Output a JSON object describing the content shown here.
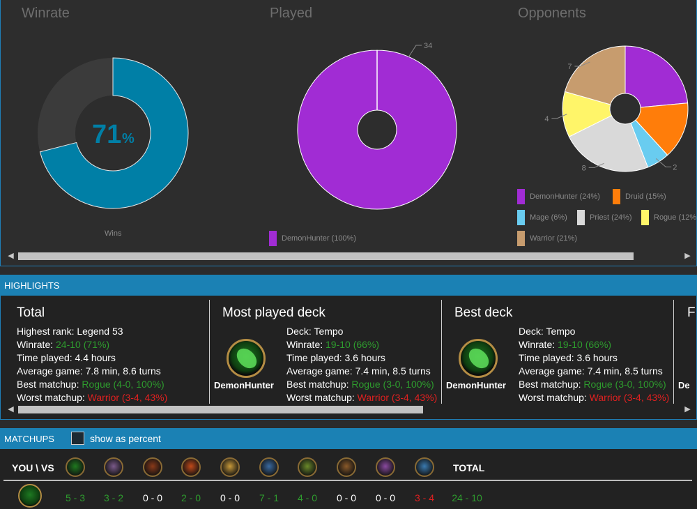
{
  "charts": {
    "winrate": {
      "title": "Winrate",
      "percent_value": "71",
      "percent_sign": "%",
      "legend": "Wins",
      "fraction": 0.71,
      "colors": {
        "fill": "#007fa6",
        "track": "#3b3b3b"
      }
    },
    "played": {
      "title": "Played",
      "callout": "34",
      "legend": "DemonHunter (100%)",
      "color": "#a12cd4"
    },
    "opponents": {
      "title": "Opponents",
      "callouts": [
        "7",
        "4",
        "8",
        "2"
      ],
      "legend": [
        {
          "label": "DemonHunter (24%)",
          "color": "#a12cd4"
        },
        {
          "label": "Druid (15%)",
          "color": "#ff7d0a"
        },
        {
          "label": "Mage (6%)",
          "color": "#69ccf0"
        },
        {
          "label": "Priest (24%)",
          "color": "#d9d9d9"
        },
        {
          "label": "Rogue (12%",
          "color": "#fff569"
        },
        {
          "label": "Warrior (21%)",
          "color": "#c79c6e"
        }
      ]
    }
  },
  "chart_data": {
    "type": "pie",
    "title": "Opponents",
    "categories": [
      "DemonHunter",
      "Druid",
      "Mage",
      "Priest",
      "Rogue",
      "Warrior"
    ],
    "values": [
      8,
      5,
      2,
      8,
      4,
      7
    ],
    "colors": [
      "#a12cd4",
      "#ff7d0a",
      "#69ccf0",
      "#d9d9d9",
      "#fff569",
      "#c79c6e"
    ],
    "legend_placement": "bottom"
  },
  "scroll": {
    "left_arrow": "◀",
    "right_arrow": "▶"
  },
  "highlights": {
    "header": "HIGHLIGHTS",
    "total": {
      "heading": "Total",
      "lines": [
        {
          "label": "Highest rank: ",
          "value": "Legend 53",
          "tone": "white"
        },
        {
          "label": "Winrate: ",
          "value": "24-10 (71%)",
          "tone": "green"
        },
        {
          "label": "Time played: ",
          "value": "4.4 hours",
          "tone": "white"
        },
        {
          "label": "Average game: ",
          "value": "7.8 min, 8.6 turns",
          "tone": "white"
        },
        {
          "label": "Best matchup: ",
          "value": "Rogue (4-0, 100%)",
          "tone": "green"
        },
        {
          "label": "Worst matchup: ",
          "value": "Warrior (3-4, 43%)",
          "tone": "red"
        }
      ]
    },
    "most_played": {
      "heading": "Most played deck",
      "class_name": "DemonHunter",
      "lines": [
        {
          "label": "Deck: ",
          "value": "Tempo",
          "tone": "white"
        },
        {
          "label": "Winrate: ",
          "value": "19-10 (66%)",
          "tone": "green"
        },
        {
          "label": "Time played: ",
          "value": "3.6 hours",
          "tone": "white"
        },
        {
          "label": "Average game: ",
          "value": "7.4 min, 8.5 turns",
          "tone": "white"
        },
        {
          "label": "Best matchup: ",
          "value": "Rogue (3-0, 100%)",
          "tone": "green"
        },
        {
          "label": "Worst matchup: ",
          "value": "Warrior (3-4, 43%)",
          "tone": "red"
        }
      ]
    },
    "best_deck": {
      "heading": "Best deck",
      "class_name": "DemonHunter",
      "lines": [
        {
          "label": "Deck: ",
          "value": "Tempo",
          "tone": "white"
        },
        {
          "label": "Winrate: ",
          "value": "19-10 (66%)",
          "tone": "green"
        },
        {
          "label": "Time played: ",
          "value": "3.6 hours",
          "tone": "white"
        },
        {
          "label": "Average game: ",
          "value": "7.4 min, 8.5 turns",
          "tone": "white"
        },
        {
          "label": "Best matchup: ",
          "value": "Rogue (3-0, 100%)",
          "tone": "green"
        },
        {
          "label": "Worst matchup: ",
          "value": "Warrior (3-4, 43%)",
          "tone": "red"
        }
      ]
    },
    "partial": {
      "heading": "F",
      "class_name": "De"
    }
  },
  "matchups": {
    "header": "MATCHUPS",
    "checkbox_label": "show as percent",
    "you_vs": "YOU \\ VS",
    "total_label": "TOTAL",
    "opponents": [
      {
        "icon": "demonhunter-icon",
        "color": "#1f7a1f"
      },
      {
        "icon": "druid-icon",
        "color": "#7a5a8a"
      },
      {
        "icon": "hunter-icon",
        "color": "#8a3a1a"
      },
      {
        "icon": "mage-icon",
        "color": "#c04a1a"
      },
      {
        "icon": "paladin-icon",
        "color": "#c89a3a"
      },
      {
        "icon": "priest-icon",
        "color": "#3a6aa0"
      },
      {
        "icon": "rogue-icon",
        "color": "#6a8a2a"
      },
      {
        "icon": "shaman-icon",
        "color": "#8a5a2a"
      },
      {
        "icon": "warlock-icon",
        "color": "#8a4aa0"
      },
      {
        "icon": "warrior-icon",
        "color": "#3a7ab0"
      }
    ],
    "row": [
      {
        "text": "5 - 3",
        "tone": "green"
      },
      {
        "text": "3 - 2",
        "tone": "green"
      },
      {
        "text": "0 - 0",
        "tone": "white"
      },
      {
        "text": "2 - 0",
        "tone": "green"
      },
      {
        "text": "0 - 0",
        "tone": "white"
      },
      {
        "text": "7 - 1",
        "tone": "green"
      },
      {
        "text": "4 - 0",
        "tone": "green"
      },
      {
        "text": "0 - 0",
        "tone": "white"
      },
      {
        "text": "0 - 0",
        "tone": "white"
      },
      {
        "text": "3 - 4",
        "tone": "red"
      },
      {
        "text": "24 - 10",
        "tone": "green"
      }
    ]
  }
}
